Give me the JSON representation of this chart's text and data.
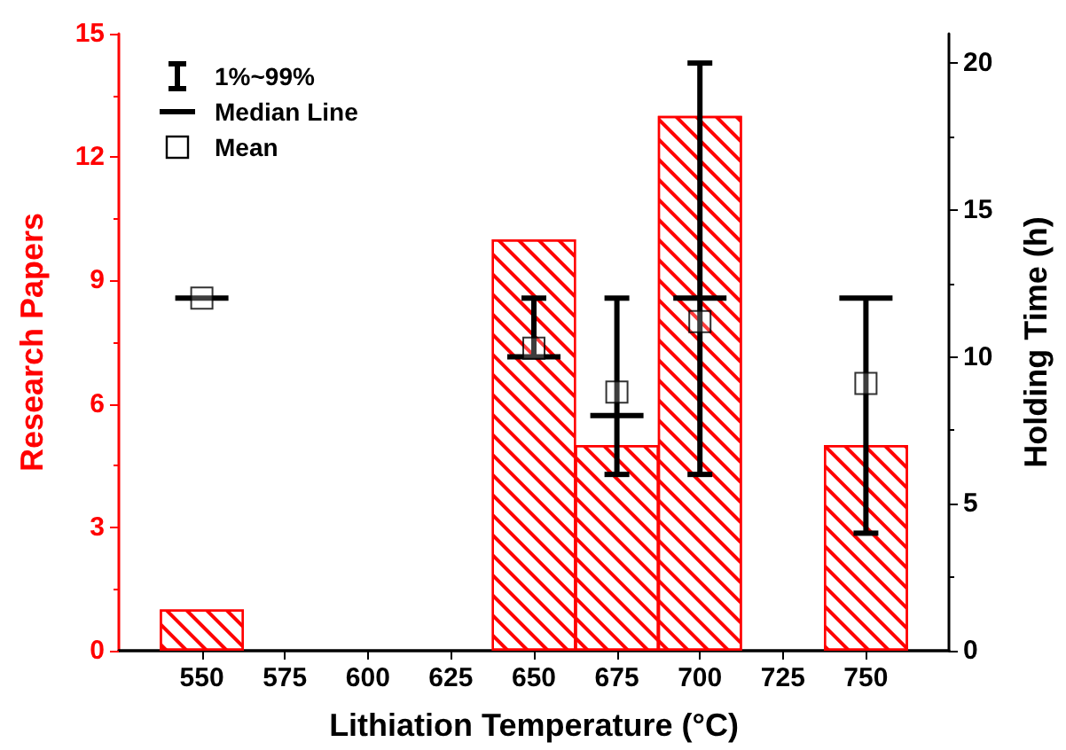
{
  "chart_data": {
    "type": "bar",
    "xlabel": "Lithiation Temperature (°C)",
    "ylabel": "Research Papers",
    "y2label": "Holding Time (h)",
    "x": [
      550,
      650,
      675,
      700,
      750
    ],
    "xlim": [
      525,
      775
    ],
    "xticks": [
      550,
      575,
      600,
      625,
      650,
      675,
      700,
      725,
      750
    ],
    "ylim": [
      0,
      15
    ],
    "yticks": [
      0,
      3,
      6,
      9,
      12,
      15
    ],
    "y2lim": [
      0,
      21
    ],
    "y2ticks": [
      0,
      5,
      10,
      15,
      20
    ],
    "series": [
      {
        "color": "#ff0000",
        "values": [
          1,
          10,
          5,
          13,
          5
        ]
      },
      {
        "name": "1%~99%",
        "type": "box",
        "axis": "y2",
        "color": "#000000",
        "x": [
          550,
          650,
          675,
          700,
          750
        ],
        "boxes": [
          {
            "low": 12,
            "q1": 12,
            "median": 12,
            "q3": 12,
            "high": 12,
            "mean": 12
          },
          {
            "low": 10,
            "q1": 10,
            "median": 10,
            "q3": 10,
            "high": 12,
            "mean": 10.3
          },
          {
            "low": 6,
            "q1": 8,
            "median": 8,
            "q3": 8,
            "high": 12,
            "mean": 8.8
          },
          {
            "low": 6,
            "q1": 12,
            "median": 12,
            "q3": 12,
            "high": 20,
            "mean": 11.2
          },
          {
            "low": 4,
            "q1": 12,
            "median": 12,
            "q3": 12,
            "high": 12,
            "mean": 9.1
          }
        ]
      }
    ],
    "annotations": [
      "Median Line",
      "Mean"
    ],
    "legend": "top left",
    "grid": false
  }
}
